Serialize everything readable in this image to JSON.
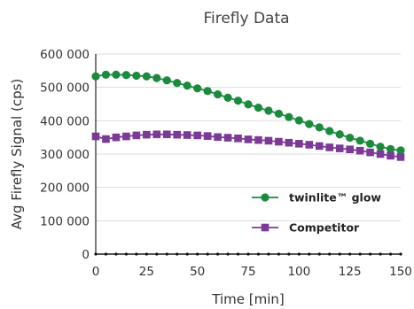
{
  "chart_data": {
    "type": "line",
    "title": "Firefly Data",
    "xlabel": "Time [min]",
    "ylabel": "Avg Firefly Signal (cps)",
    "xlim": [
      0,
      150
    ],
    "ylim": [
      0,
      600000
    ],
    "xticks": [
      "0",
      "25",
      "50",
      "75",
      "100",
      "125",
      "150"
    ],
    "xtick_values": [
      0,
      25,
      50,
      75,
      100,
      125,
      150
    ],
    "yticks": [
      "0",
      "100 000",
      "200 000",
      "300 000",
      "400 000",
      "500 000",
      "600 000"
    ],
    "ytick_values": [
      0,
      100000,
      200000,
      300000,
      400000,
      500000,
      600000
    ],
    "grid": "horizontal",
    "legend_position": "bottom-right",
    "x": [
      0,
      5,
      10,
      15,
      20,
      25,
      30,
      35,
      40,
      45,
      50,
      55,
      60,
      65,
      70,
      75,
      80,
      85,
      90,
      95,
      100,
      105,
      110,
      115,
      120,
      125,
      130,
      135,
      140,
      145,
      150
    ],
    "series": [
      {
        "name": "twinlite™ glow",
        "color": "#1a8a3c",
        "marker": "circle",
        "values": [
          533000,
          538000,
          538000,
          537000,
          535000,
          533000,
          528000,
          521000,
          513000,
          505000,
          497000,
          489000,
          479000,
          469000,
          460000,
          449000,
          439000,
          430000,
          421000,
          411000,
          401000,
          390000,
          380000,
          369000,
          359000,
          349000,
          340000,
          331000,
          322000,
          315000,
          311000
        ]
      },
      {
        "name": "Competitor",
        "color": "#7b3a96",
        "marker": "square",
        "values": [
          353000,
          345000,
          350000,
          353000,
          356000,
          358000,
          359000,
          359000,
          358000,
          357000,
          356000,
          354000,
          351000,
          349000,
          347000,
          344000,
          342000,
          340000,
          337000,
          334000,
          331000,
          328000,
          324000,
          320000,
          317000,
          314000,
          310000,
          305000,
          300000,
          295000,
          291000
        ]
      },
      {
        "name": "",
        "color": "#111111",
        "marker": "dot",
        "values": [
          0,
          0,
          0,
          0,
          0,
          0,
          0,
          0,
          0,
          0,
          0,
          0,
          0,
          0,
          0,
          0,
          0,
          0,
          0,
          0,
          0,
          0,
          0,
          0,
          0,
          0,
          0,
          0,
          0,
          0,
          0
        ]
      }
    ]
  }
}
